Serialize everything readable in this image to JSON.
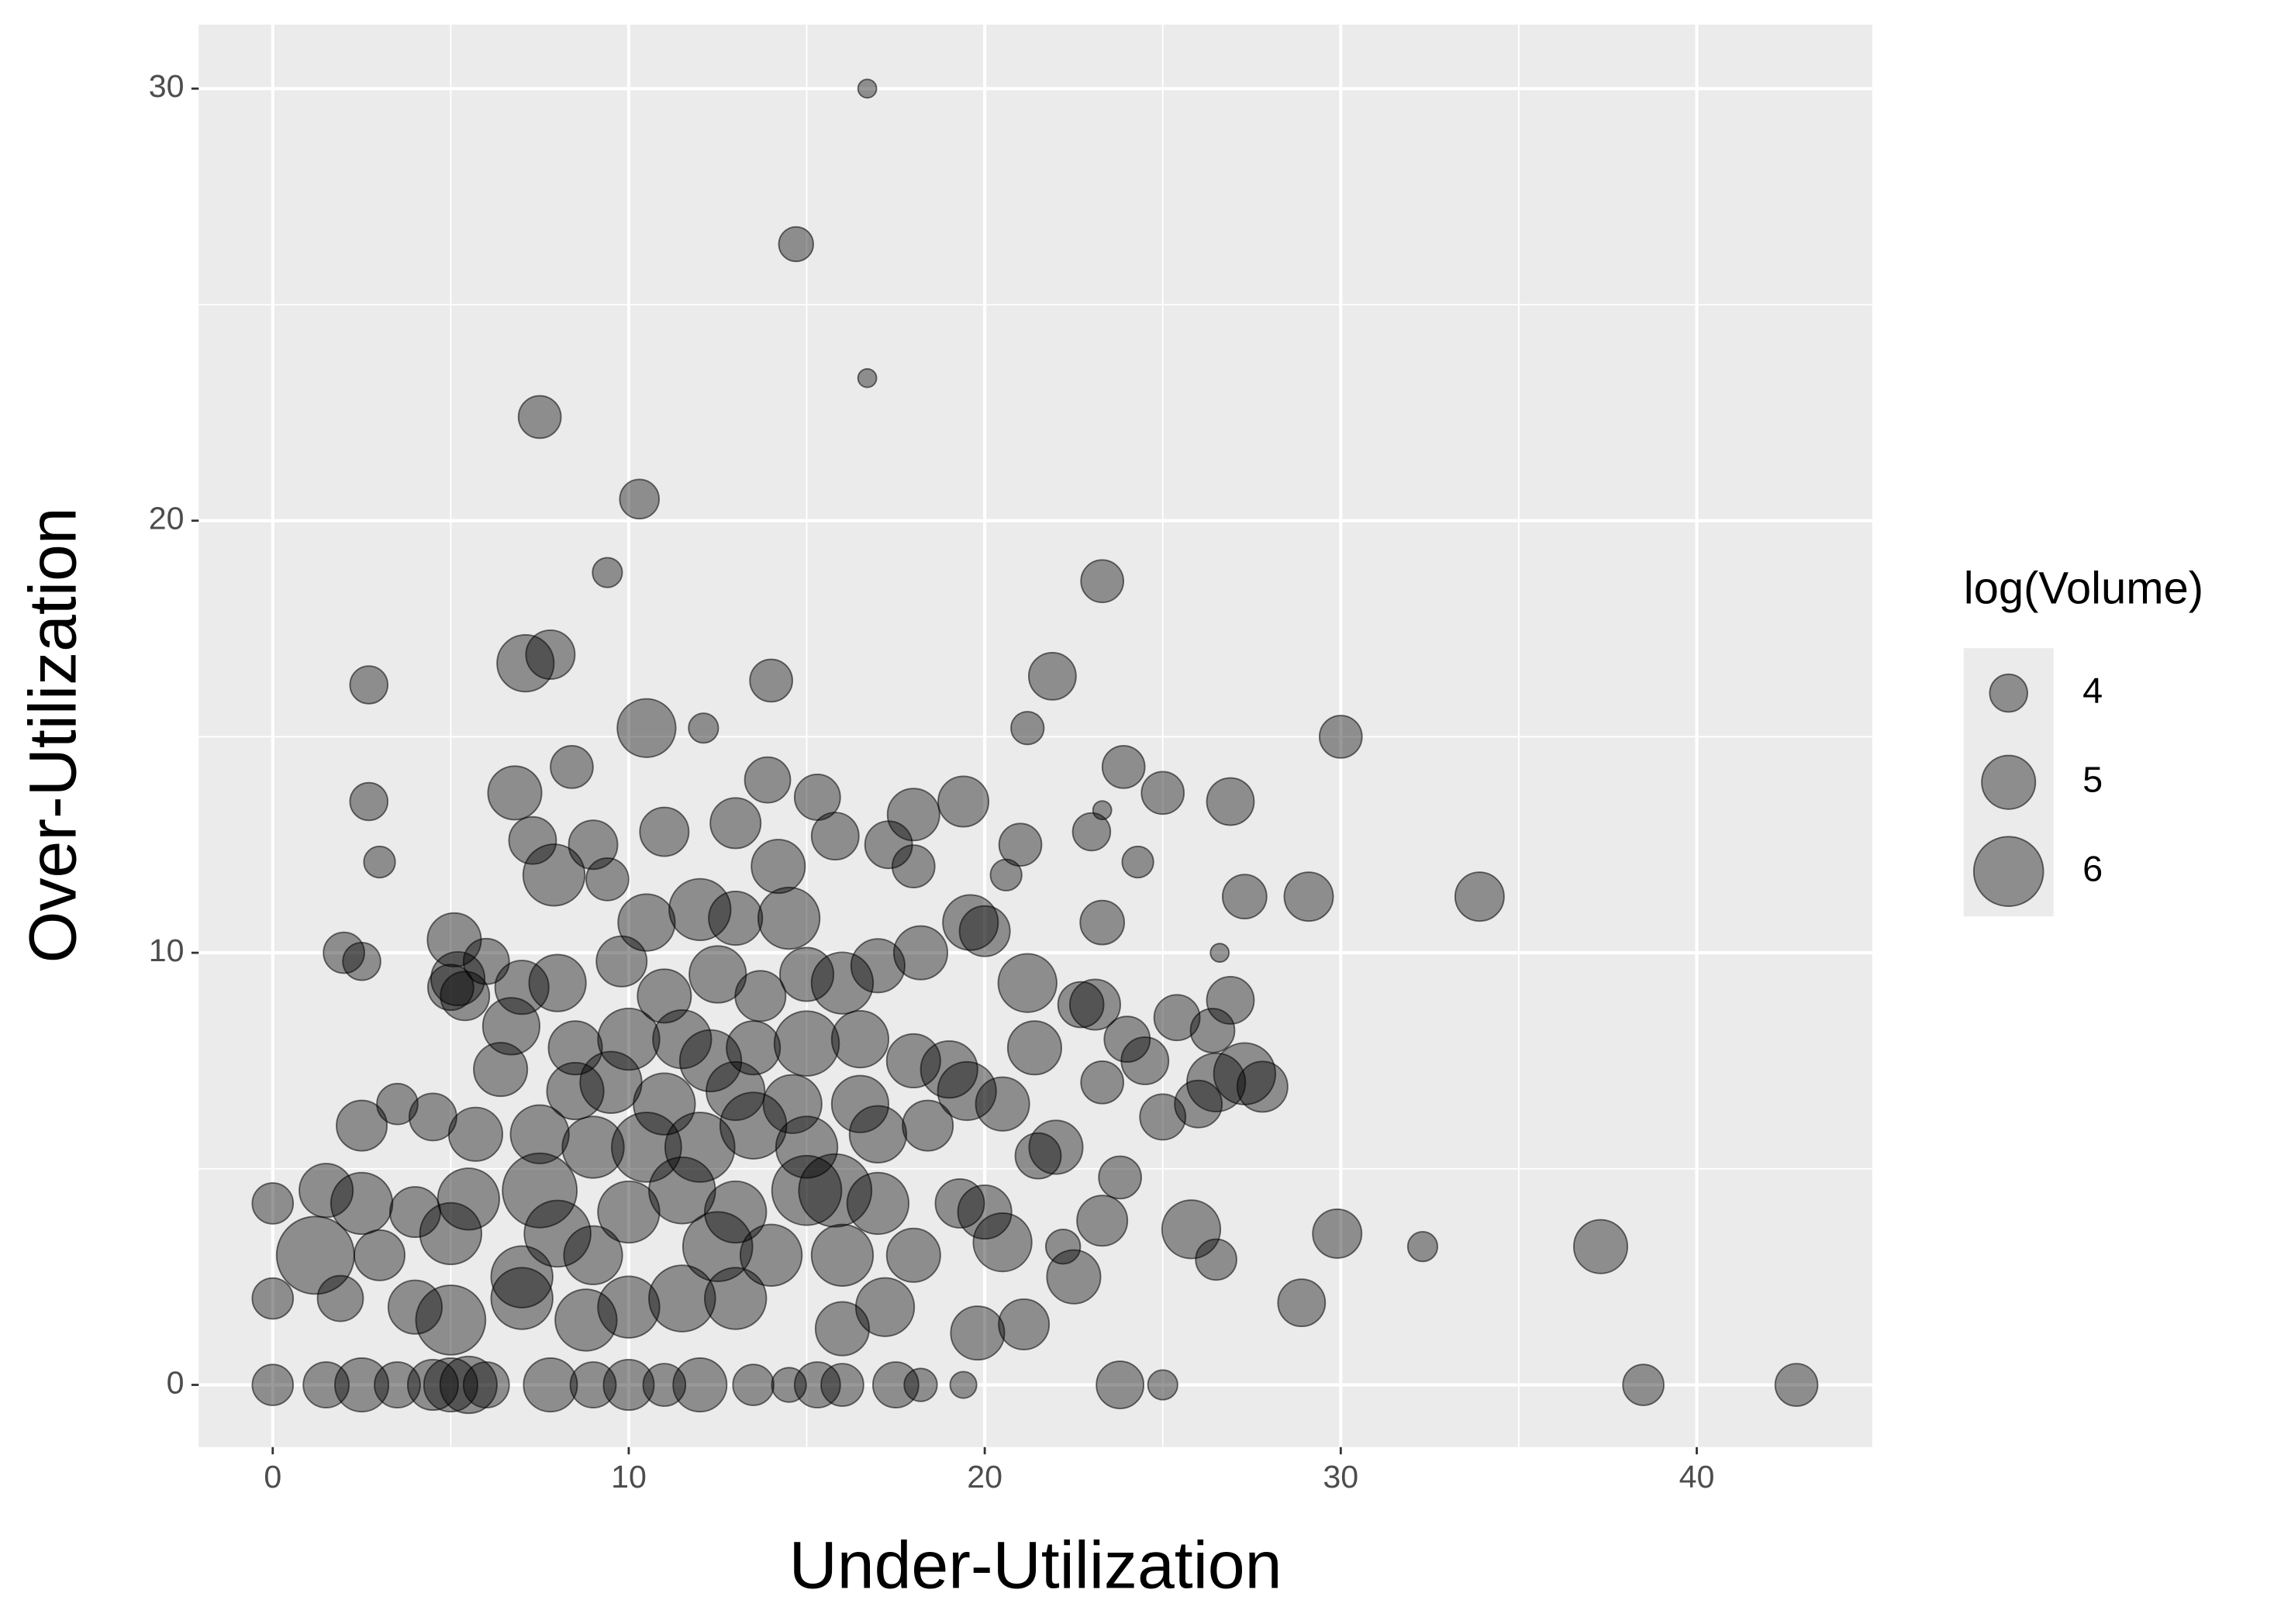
{
  "chart_data": {
    "type": "bubble",
    "xlabel": "Under-Utilization",
    "ylabel": "Over-Utilization",
    "xlim": [
      -2.08,
      44.93
    ],
    "ylim": [
      -1.44,
      31.48
    ],
    "xticks": [
      0,
      10,
      20,
      30,
      40
    ],
    "yticks": [
      0,
      10,
      20,
      30
    ],
    "xminor": [
      5,
      15,
      25,
      35
    ],
    "yminor": [
      5,
      15,
      25
    ],
    "grid": true,
    "color": "#000000",
    "legend": {
      "title": "log(Volume)",
      "sizes": [
        4,
        5,
        6
      ],
      "position": "right"
    },
    "x": [
      16.7,
      14.7,
      16.7,
      7.5,
      10.3,
      9.4,
      23.3,
      7.1,
      7.8,
      2.7,
      14,
      21.9,
      10.5,
      12.1,
      21.2,
      30,
      2.7,
      6.8,
      8.4,
      13.9,
      15.3,
      19.4,
      25,
      26.9,
      23.3,
      23.9,
      3,
      7.3,
      9,
      11,
      13,
      15.8,
      17.3,
      18,
      21,
      23,
      24.3,
      7.9,
      9.4,
      14.2,
      18,
      20.6,
      27.3,
      29.1,
      33.9,
      2,
      2.5,
      5,
      5.2,
      5.4,
      5.1,
      6,
      10.5,
      12,
      13,
      14.5,
      19.6,
      20,
      23.3,
      26.6,
      18.2,
      7,
      8,
      9.8,
      11,
      12.5,
      13.7,
      15,
      16,
      17,
      21.2,
      22.7,
      23.1,
      25.4,
      26.9,
      6.7,
      8.5,
      10,
      11.5,
      12.3,
      13.5,
      15,
      16.5,
      18,
      19,
      21.4,
      24,
      24.5,
      26.4,
      26.5,
      27.3,
      27.8,
      6.4,
      8.5,
      9.5,
      11,
      13,
      14.6,
      16.5,
      19.5,
      20.5,
      23.3,
      26,
      2.5,
      3.5,
      4.5,
      5.7,
      7.5,
      9,
      10.5,
      12,
      13.5,
      15,
      17,
      18.4,
      22,
      21.5,
      25,
      1.5,
      2.5,
      4,
      5.5,
      7.5,
      8,
      10,
      11.5,
      13,
      15,
      15.8,
      17,
      19.3,
      20,
      23.3,
      23.8,
      25.8,
      29.9,
      32.3,
      37.3,
      0,
      1.2,
      3,
      5,
      7,
      9,
      12.5,
      14,
      16,
      18,
      20.5,
      22.2,
      22.5,
      26.5,
      0,
      1.9,
      4,
      5,
      7,
      8.8,
      10,
      11.5,
      13,
      16,
      17.2,
      19.8,
      21.1,
      28.9,
      0,
      1.5,
      2.5,
      3.5,
      4.5,
      5,
      5.5,
      6,
      7.8,
      9,
      10,
      11,
      12,
      13.5,
      14.5,
      15.3,
      16,
      17.5,
      18.2,
      19.4,
      23.8,
      25,
      38.5,
      42.8
    ],
    "y": [
      30,
      26.4,
      23.3,
      22.4,
      20.5,
      18.8,
      18.6,
      16.7,
      16.9,
      16.2,
      16.3,
      16.4,
      15.2,
      15.2,
      15.2,
      15,
      13.5,
      13.7,
      14.3,
      14,
      13.6,
      13.5,
      13.7,
      13.5,
      13.3,
      14.3,
      12.1,
      12.6,
      12.5,
      12.8,
      13,
      12.7,
      12.5,
      13.2,
      12.5,
      12.8,
      12.1,
      11.8,
      11.7,
      12,
      12,
      11.8,
      11.3,
      11.3,
      11.3,
      10,
      9.8,
      9.2,
      9.4,
      9,
      10.3,
      9.8,
      10.7,
      11,
      10.8,
      10.8,
      10.7,
      10.5,
      10.7,
      10,
      10,
      9.2,
      9.3,
      9.8,
      9,
      9.5,
      9,
      9.5,
      9.3,
      9.7,
      9.3,
      8.8,
      8.8,
      8.5,
      8.9,
      8.3,
      7.8,
      8,
      8,
      7.5,
      7.8,
      7.9,
      8,
      7.5,
      7.3,
      7.8,
      8,
      7.5,
      8.2,
      7,
      7.2,
      6.9,
      7.3,
      6.8,
      7,
      6.5,
      6.8,
      6.5,
      6.5,
      6.8,
      6.5,
      7,
      6.5,
      6,
      6.5,
      6.2,
      5.8,
      5.8,
      5.5,
      5.5,
      5.5,
      6,
      5.5,
      5.8,
      6,
      5.5,
      5.3,
      6.2,
      4.5,
      4.2,
      4,
      4.3,
      4.5,
      3.5,
      4,
      4.5,
      4,
      4.5,
      4.5,
      4.2,
      4.2,
      4,
      3.8,
      4.8,
      3.6,
      3.5,
      3.2,
      3.2,
      4.2,
      3,
      3,
      3.5,
      2.5,
      3,
      3.2,
      3,
      3,
      3,
      3.3,
      3.2,
      2.5,
      2.9,
      2,
      2,
      1.8,
      1.5,
      2,
      1.5,
      1.8,
      2,
      2,
      1.3,
      1.8,
      1.2,
      1.4,
      1.9,
      0,
      0,
      0,
      0,
      0,
      0,
      0,
      0,
      0,
      0,
      0,
      0,
      0,
      0,
      0,
      0,
      0,
      0,
      0,
      0,
      0,
      0,
      0,
      0
    ],
    "sizes": [
      2.8,
      3.8,
      2.8,
      4.3,
      4.1,
      3.5,
      4.3,
      5.2,
      4.7,
      4,
      4.3,
      4.6,
      5.3,
      3.5,
      3.7,
      4.3,
      4,
      5,
      4.3,
      4.5,
      4.5,
      4.8,
      4.3,
      4.6,
      2.8,
      4.3,
      3.6,
      4.6,
      4.7,
      4.7,
      4.8,
      4.6,
      4.6,
      4.9,
      4.3,
      4,
      3.6,
      5.5,
      4.3,
      5,
      4.3,
      3.6,
      4.4,
      4.7,
      4.7,
      4.2,
      4,
      4.5,
      5,
      4.7,
      5,
      4.5,
      5.2,
      5.5,
      5,
      5.5,
      5.1,
      4.8,
      4.4,
      2.8,
      5,
      5,
      5.2,
      4.8,
      5,
      5.2,
      4.8,
      5,
      5.5,
      5,
      5.3,
      4.5,
      4.8,
      4.5,
      4.6,
      5.2,
      5,
      5.5,
      5.3,
      5.5,
      5,
      5.7,
      5.2,
      5,
      5.2,
      5,
      4.5,
      4.6,
      4.4,
      5.3,
      5.5,
      4.8,
      5,
      5.2,
      5.5,
      5.5,
      5.3,
      5.3,
      5.2,
      5.3,
      5,
      4.3,
      4.6,
      4.8,
      4.2,
      4.6,
      5,
      5.3,
      5.5,
      6,
      6,
      5.8,
      5.5,
      5.2,
      4.8,
      5,
      4.5,
      4.5,
      5,
      5.5,
      4.8,
      5.5,
      6.3,
      5.8,
      5.5,
      5.8,
      5.5,
      6,
      6.2,
      5.5,
      4.7,
      5,
      4.8,
      4.3,
      5.3,
      4.7,
      3.5,
      5,
      4.2,
      6.5,
      4.8,
      5.5,
      5.5,
      5.3,
      6,
      5.5,
      5.5,
      5,
      5.3,
      3.8,
      5,
      4.2,
      4.2,
      4.5,
      5,
      6,
      5.5,
      5.5,
      5.5,
      5.8,
      5.5,
      5,
      5.3,
      5,
      4.8,
      4.6,
      4.2,
      4.5,
      5,
      4.5,
      4.8,
      5,
      5.2,
      4.5,
      5,
      4.5,
      4.8,
      4.3,
      5,
      4.2,
      3.8,
      4.5,
      4.3,
      4.5,
      3.7,
      3.3,
      4.6,
      3.5,
      4.2,
      4.3
    ]
  }
}
